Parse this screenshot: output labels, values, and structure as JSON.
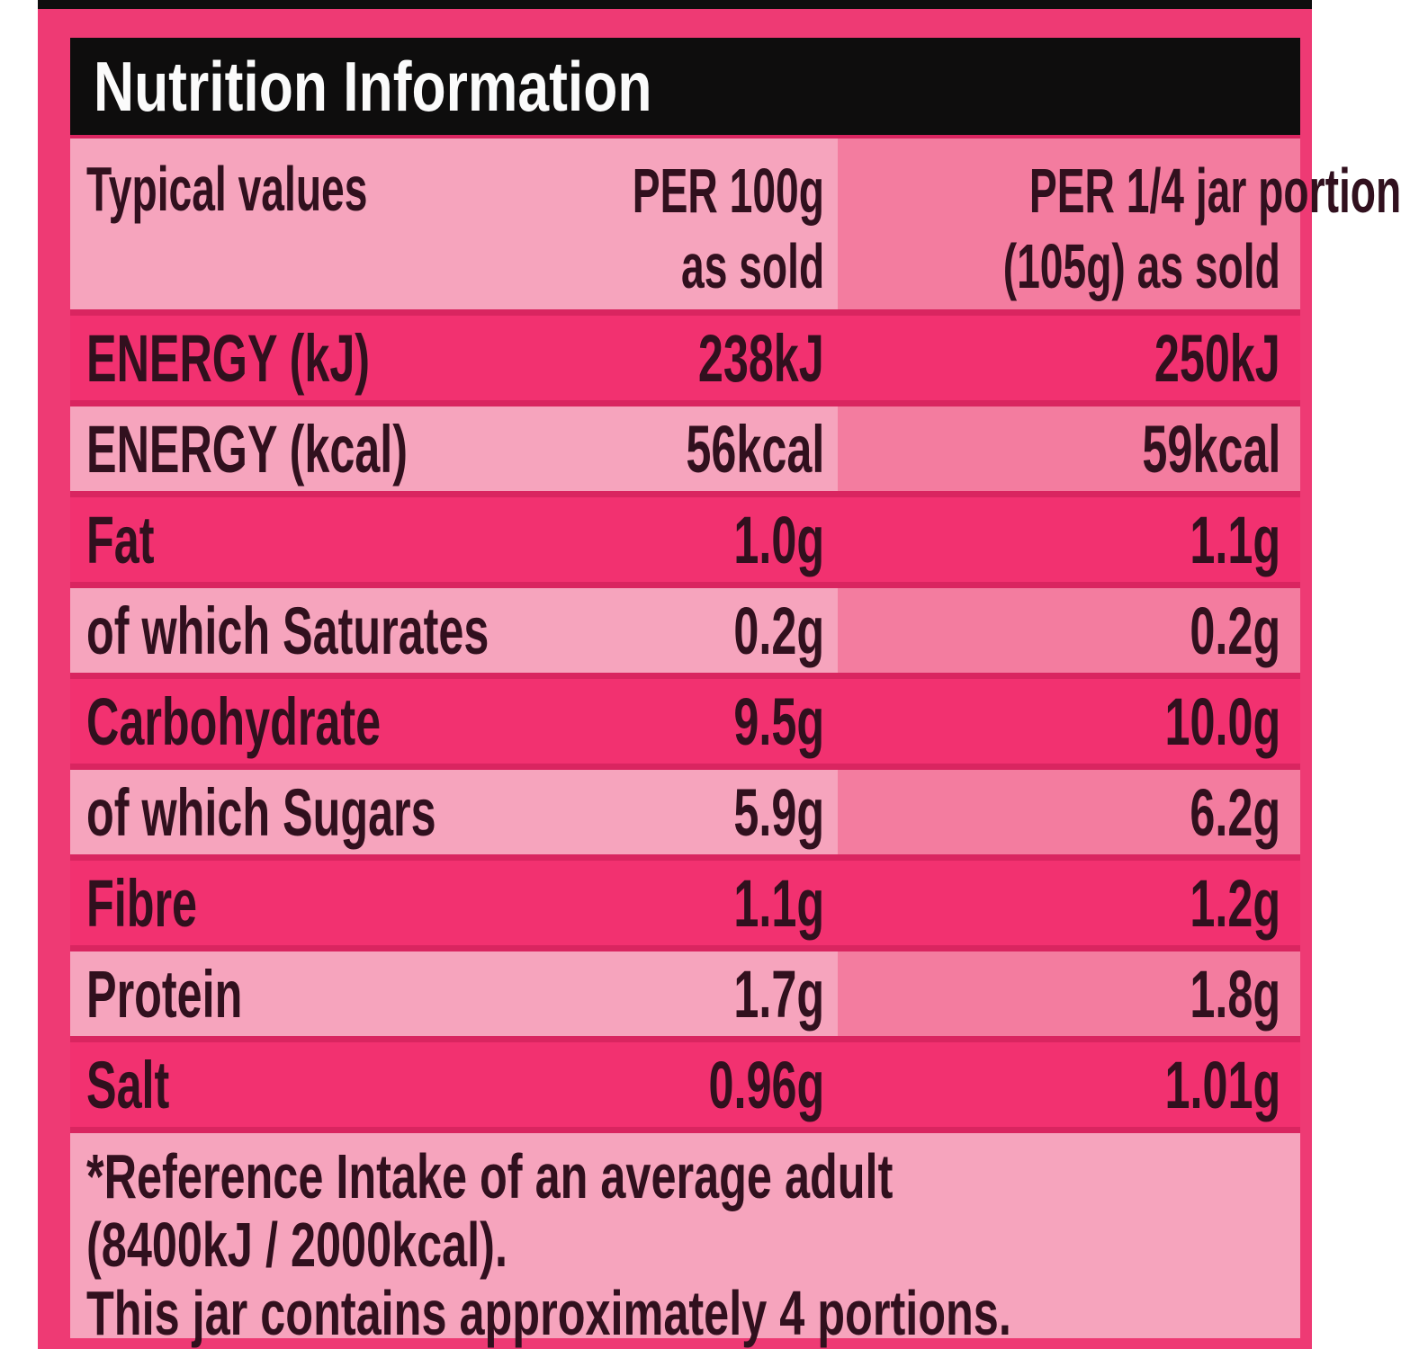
{
  "title": "Nutrition Information",
  "header": {
    "typical_values": "Typical values",
    "per100g": [
      "PER 100g",
      "as sold"
    ],
    "per_portion": [
      "PER 1/4 jar portion",
      "(105g) as sold"
    ]
  },
  "rows": [
    {
      "label": "ENERGY (kJ)",
      "per100": "238kJ",
      "per_portion": "250kJ",
      "shade": "dark"
    },
    {
      "label": "ENERGY (kcal)",
      "per100": "56kcal",
      "per_portion": "59kcal",
      "shade": "light"
    },
    {
      "label": "Fat",
      "per100": "1.0g",
      "per_portion": "1.1g",
      "shade": "dark"
    },
    {
      "label": "of which Saturates",
      "per100": "0.2g",
      "per_portion": "0.2g",
      "shade": "light"
    },
    {
      "label": "Carbohydrate",
      "per100": "9.5g",
      "per_portion": "10.0g",
      "shade": "dark"
    },
    {
      "label": "of which Sugars",
      "per100": "5.9g",
      "per_portion": "6.2g",
      "shade": "light"
    },
    {
      "label": "Fibre",
      "per100": "1.1g",
      "per_portion": "1.2g",
      "shade": "dark"
    },
    {
      "label": "Protein",
      "per100": "1.7g",
      "per_portion": "1.8g",
      "shade": "light"
    },
    {
      "label": "Salt",
      "per100": "0.96g",
      "per_portion": "1.01g",
      "shade": "dark"
    }
  ],
  "footnote": [
    "*Reference Intake of an average adult",
    "(8400kJ / 2000kcal).",
    "This jar contains approximately 4 portions."
  ],
  "colors": {
    "background_pink": "#ee3a74",
    "row_dark_pink": "#f23170",
    "row_light_pink": "#f6a4bd",
    "column3_pink": "#f37c9f",
    "row_gap_pink": "#d92560",
    "header_bar_black": "#0e0d0d",
    "title_text_white": "#fbfbfb",
    "text_maroon": "#31101e"
  }
}
